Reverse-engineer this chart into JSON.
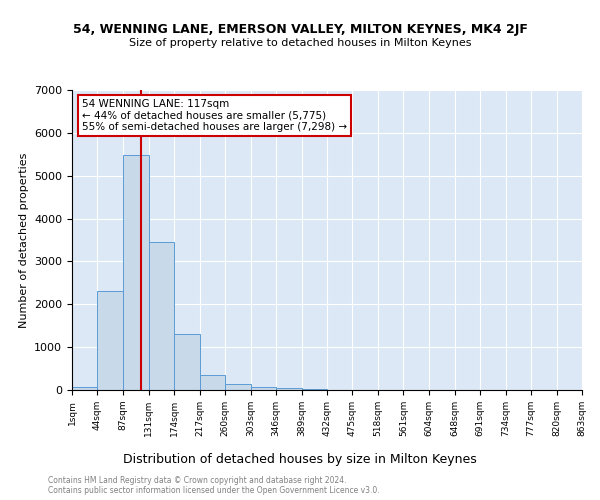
{
  "title": "54, WENNING LANE, EMERSON VALLEY, MILTON KEYNES, MK4 2JF",
  "subtitle": "Size of property relative to detached houses in Milton Keynes",
  "xlabel": "Distribution of detached houses by size in Milton Keynes",
  "ylabel": "Number of detached properties",
  "footnote1": "Contains HM Land Registry data © Crown copyright and database right 2024.",
  "footnote2": "Contains public sector information licensed under the Open Government Licence v3.0.",
  "property_size": 117,
  "property_label": "54 WENNING LANE: 117sqm",
  "annotation_line1": "← 44% of detached houses are smaller (5,775)",
  "annotation_line2": "55% of semi-detached houses are larger (7,298) →",
  "bar_edges": [
    1,
    44,
    87,
    131,
    174,
    217,
    260,
    303,
    346,
    389,
    432,
    475,
    518,
    561,
    604,
    648,
    691,
    734,
    777,
    820,
    863
  ],
  "bar_heights": [
    60,
    2300,
    5475,
    3450,
    1300,
    350,
    150,
    60,
    50,
    30,
    0,
    0,
    0,
    0,
    0,
    0,
    0,
    0,
    0,
    0
  ],
  "bar_color": "#c8d9ea",
  "bar_edge_color": "#5b9bd5",
  "vline_x": 117,
  "vline_color": "#cc0000",
  "annotation_box_color": "#cc0000",
  "background_color": "#dce8f5",
  "ylim": [
    0,
    7000
  ],
  "yticks": [
    0,
    1000,
    2000,
    3000,
    4000,
    5000,
    6000,
    7000
  ]
}
